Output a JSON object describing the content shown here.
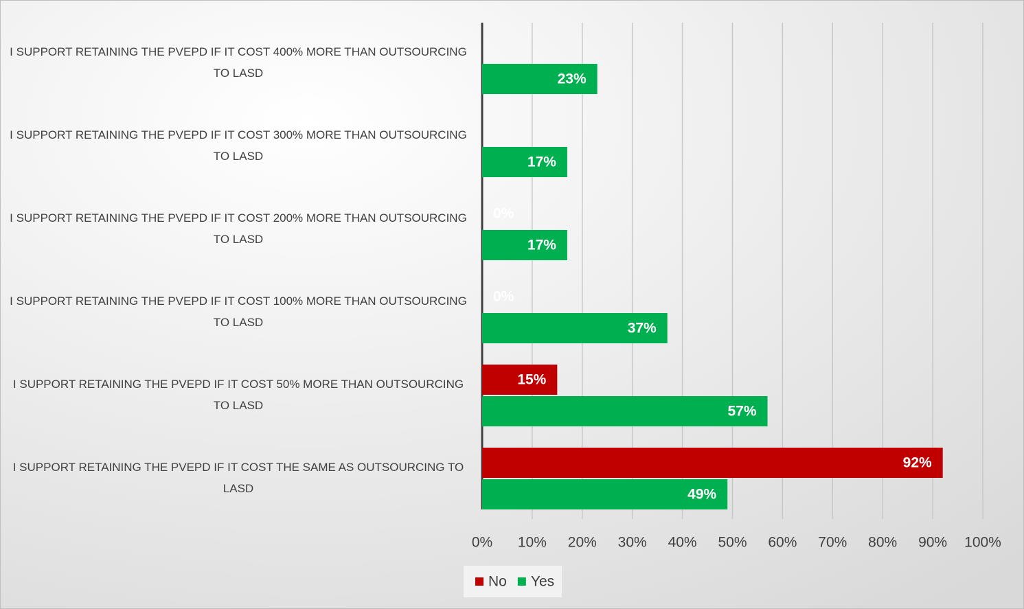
{
  "chart_data": {
    "type": "hbar",
    "categories": [
      "I SUPPORT RETAINING THE PVEPD IF IT COST 400% MORE THAN OUTSOURCING TO LASD",
      "I SUPPORT RETAINING THE PVEPD IF IT COST 300% MORE THAN OUTSOURCING TO LASD",
      "I SUPPORT RETAINING THE PVEPD IF IT COST 200% MORE THAN OUTSOURCING TO LASD",
      "I SUPPORT RETAINING THE PVEPD IF IT COST 100% MORE THAN OUTSOURCING TO LASD",
      "I SUPPORT RETAINING THE PVEPD IF IT COST 50% MORE THAN OUTSOURCING TO LASD",
      "I SUPPORT RETAINING THE PVEPD IF IT COST THE SAME AS OUTSOURCING TO LASD"
    ],
    "series": [
      {
        "name": "No",
        "color": "#c00000",
        "values": [
          null,
          null,
          0,
          0,
          15,
          92
        ],
        "value_labels": [
          null,
          null,
          "0%",
          "0%",
          "15%",
          "92%"
        ]
      },
      {
        "name": "Yes",
        "color": "#00b050",
        "values": [
          23,
          17,
          17,
          37,
          57,
          49
        ],
        "value_labels": [
          "23%",
          "17%",
          "17%",
          "37%",
          "57%",
          "49%"
        ]
      }
    ],
    "xlim": [
      0,
      100
    ],
    "xticks": [
      {
        "value": 0,
        "label": "0%"
      },
      {
        "value": 10,
        "label": "10%"
      },
      {
        "value": 20,
        "label": "20%"
      },
      {
        "value": 30,
        "label": "30%"
      },
      {
        "value": 40,
        "label": "40%"
      },
      {
        "value": 50,
        "label": "50%"
      },
      {
        "value": 60,
        "label": "60%"
      },
      {
        "value": 70,
        "label": "70%"
      },
      {
        "value": 80,
        "label": "80%"
      },
      {
        "value": 90,
        "label": "90%"
      },
      {
        "value": 100,
        "label": "100%"
      }
    ],
    "grid": true,
    "legend": "bottom"
  }
}
